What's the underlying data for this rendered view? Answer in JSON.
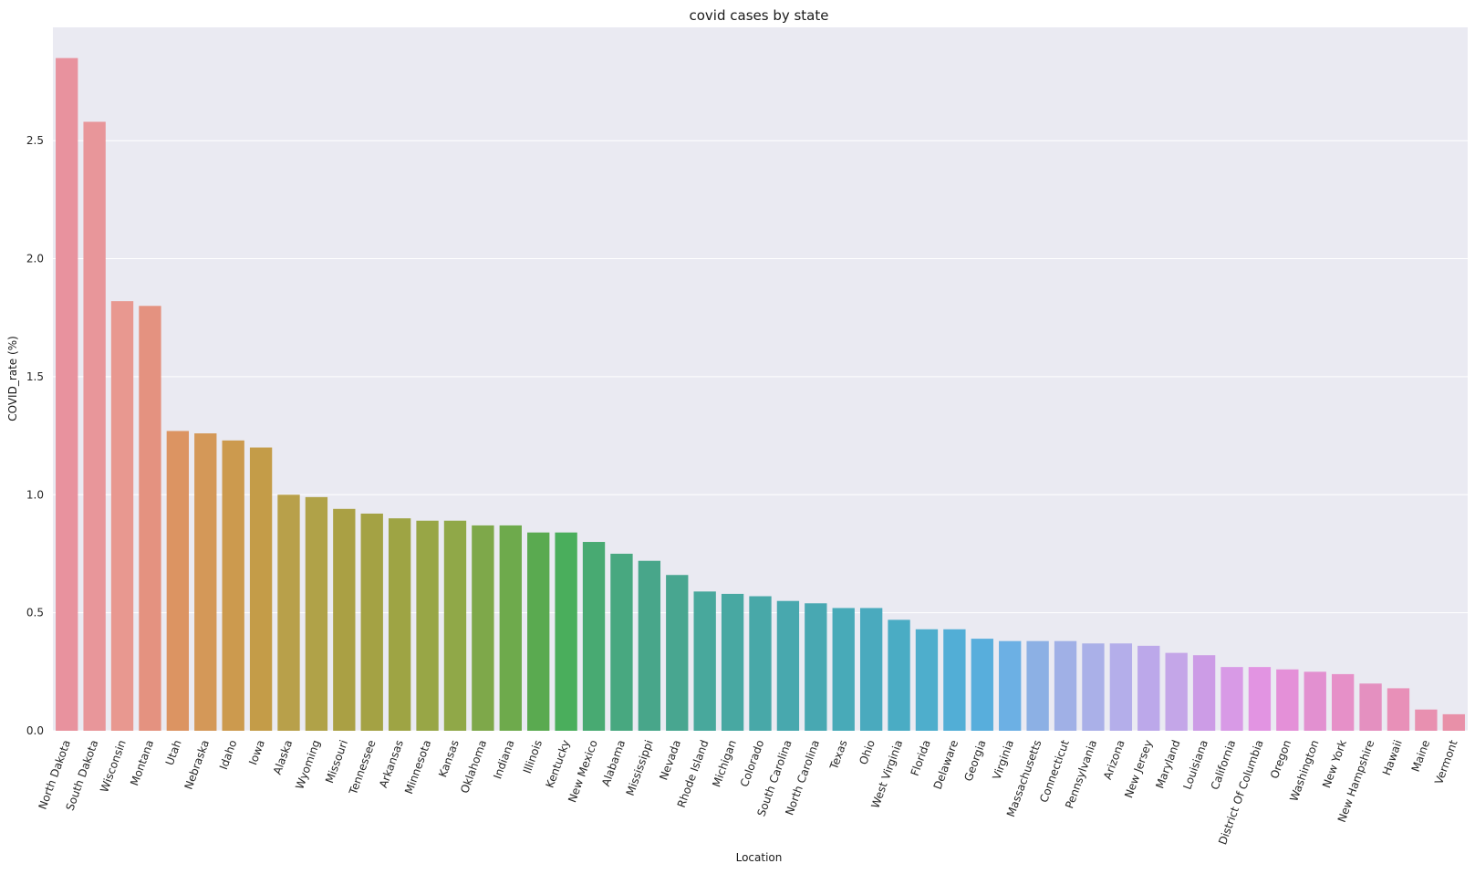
{
  "chart_data": {
    "type": "bar",
    "title": "covid cases by state",
    "xlabel": "Location",
    "ylabel": "COVID_rate (%)",
    "ylim": [
      0,
      2.98
    ],
    "yticks": [
      "0.0",
      "0.5",
      "1.0",
      "1.5",
      "2.0",
      "2.5"
    ],
    "grid": true,
    "categories": [
      "North Dakota",
      "South Dakota",
      "Wisconsin",
      "Montana",
      "Utah",
      "Nebraska",
      "Idaho",
      "Iowa",
      "Alaska",
      "Wyoming",
      "Missouri",
      "Tennessee",
      "Arkansas",
      "Minnesota",
      "Kansas",
      "Oklahoma",
      "Indiana",
      "Illinois",
      "Kentucky",
      "New Mexico",
      "Alabama",
      "Mississippi",
      "Nevada",
      "Rhode Island",
      "Michigan",
      "Colorado",
      "South Carolina",
      "North Carolina",
      "Texas",
      "Ohio",
      "West Virginia",
      "Florida",
      "Delaware",
      "Georgia",
      "Virginia",
      "Massachusetts",
      "Connecticut",
      "Pennsylvania",
      "Arizona",
      "New Jersey",
      "Maryland",
      "Louisiana",
      "California",
      "District Of Columbia",
      "Oregon",
      "Washington",
      "New York",
      "New Hampshire",
      "Hawaii",
      "Maine",
      "Vermont"
    ],
    "values": [
      2.85,
      2.58,
      1.82,
      1.8,
      1.27,
      1.26,
      1.23,
      1.2,
      1.0,
      0.99,
      0.94,
      0.92,
      0.9,
      0.89,
      0.89,
      0.87,
      0.87,
      0.84,
      0.84,
      0.8,
      0.75,
      0.72,
      0.66,
      0.59,
      0.58,
      0.57,
      0.55,
      0.54,
      0.52,
      0.52,
      0.47,
      0.43,
      0.43,
      0.39,
      0.38,
      0.38,
      0.38,
      0.37,
      0.37,
      0.36,
      0.33,
      0.32,
      0.27,
      0.27,
      0.26,
      0.25,
      0.24,
      0.2,
      0.18,
      0.09,
      0.07
    ],
    "colors": [
      "#e8929e",
      "#e8969a",
      "#e89890",
      "#e49280",
      "#dc9462",
      "#d49858",
      "#cc9a4e",
      "#c49c48",
      "#b8a04a",
      "#b0a248",
      "#aaa044",
      "#a4a244",
      "#9ea444",
      "#98a646",
      "#90a848",
      "#7ea84a",
      "#6eaa4c",
      "#5aaa50",
      "#4aae5c",
      "#48aa72",
      "#48a880",
      "#48a68a",
      "#48a690",
      "#48a89c",
      "#48a8a2",
      "#48a8a8",
      "#48a8ae",
      "#48a8b2",
      "#48aab8",
      "#4aaabe",
      "#4aacc4",
      "#4eaecc",
      "#52aed6",
      "#58aedc",
      "#6cb0e4",
      "#8cb0e4",
      "#a0b0e6",
      "#aab0e8",
      "#b4aeea",
      "#bca8ea",
      "#c4a6e8",
      "#cc9ce6",
      "#d89ae6",
      "#e294e2",
      "#e490d8",
      "#e290d0",
      "#e690c8",
      "#e490c0",
      "#e890b8",
      "#e890b0",
      "#e890a8"
    ]
  }
}
